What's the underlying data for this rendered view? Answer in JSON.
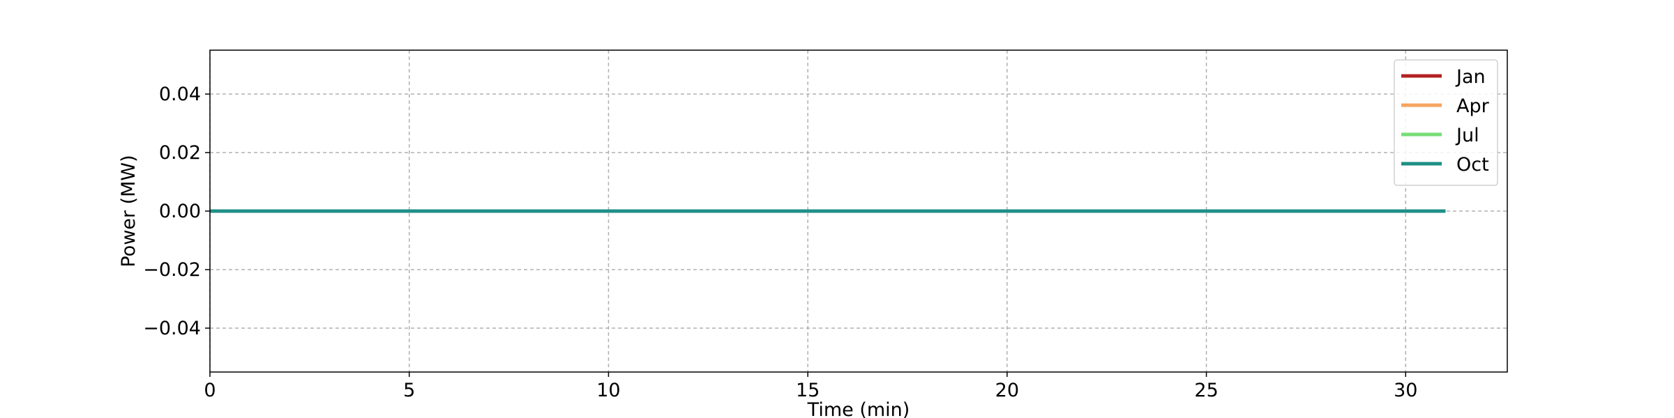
{
  "chart_data": {
    "type": "line",
    "title": "",
    "xlabel": "Time (min)",
    "ylabel": "Power (MW)",
    "xlim": [
      0,
      32.55
    ],
    "ylim": [
      -0.055,
      0.055
    ],
    "xticks": [
      0,
      5,
      10,
      15,
      20,
      25,
      30
    ],
    "xtick_labels": [
      "0",
      "5",
      "10",
      "15",
      "20",
      "25",
      "30"
    ],
    "yticks": [
      0.04,
      0.02,
      0.0,
      -0.02,
      -0.04
    ],
    "ytick_labels": [
      "0.04",
      "0.02",
      "0.00",
      "−0.02",
      "−0.04"
    ],
    "grid": true,
    "legend_position": "top-right",
    "x": [
      0,
      31
    ],
    "series": [
      {
        "name": "Jan",
        "color": "#b22222",
        "values": [
          0,
          0
        ]
      },
      {
        "name": "Apr",
        "color": "#f4a460",
        "values": [
          0,
          0
        ]
      },
      {
        "name": "Jul",
        "color": "#77dd77",
        "values": [
          0,
          0
        ]
      },
      {
        "name": "Oct",
        "color": "#1f8f86",
        "values": [
          0,
          0
        ]
      }
    ]
  }
}
